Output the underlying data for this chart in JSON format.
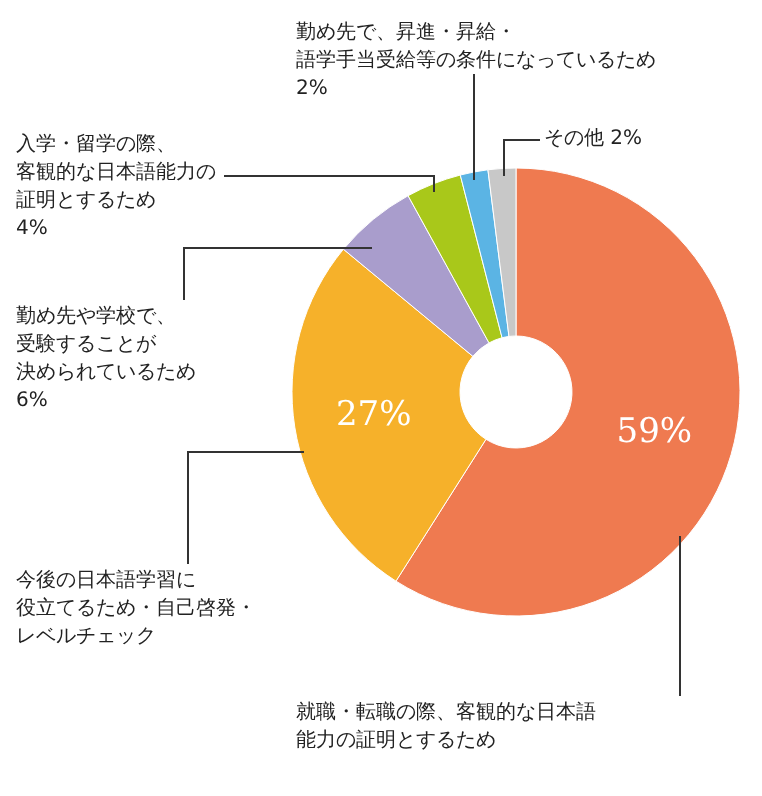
{
  "chart_data": {
    "type": "donut",
    "categories": [
      "就職・転職の際、客観的な日本語能力の証明とするため",
      "今後の日本語学習に役立てるため・自己啓発・レベルチェック",
      "勤め先や学校で、受験することが決められているため",
      "入学・留学の際、客観的な日本語能力の証明とするため",
      "勤め先で、昇進・昇給・語学手当受給等の条件になっているため",
      "その他"
    ],
    "values": [
      59,
      27,
      6,
      4,
      2,
      2
    ],
    "colors": [
      "#ef7a50",
      "#f6b12a",
      "#a99dcc",
      "#a9c81a",
      "#5bb4e4",
      "#c8c8c8"
    ],
    "value_labels": [
      "59%",
      "27%",
      "6%",
      "4%",
      "2%",
      "2%"
    ]
  }
}
